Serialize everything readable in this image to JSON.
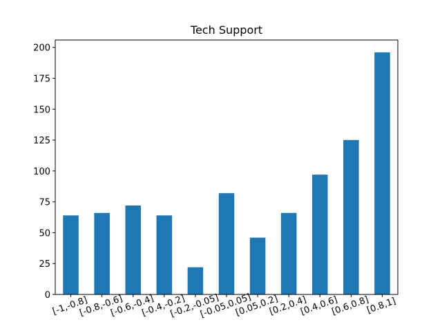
{
  "chart_data": {
    "type": "bar",
    "title": "Tech Support",
    "xlabel": "",
    "ylabel": "",
    "categories": [
      "[-1,-0.8]",
      "[-0.8,-0.6]",
      "[-0.6,-0.4]",
      "[-0.4,-0.2]",
      "[-0.2,-0.05]",
      "[-0.05,0.05]",
      "[0.05,0.2]",
      "[0.2,0.4]",
      "[0.4,0.6]",
      "[0.6,0.8]",
      "[0.8,1]"
    ],
    "values": [
      64,
      66,
      72,
      64,
      22,
      82,
      46,
      66,
      97,
      125,
      196
    ],
    "ylim": [
      0,
      206
    ],
    "yticks": [
      0,
      25,
      50,
      75,
      100,
      125,
      150,
      175,
      200
    ],
    "x_tick_rotation_deg": 20,
    "grid": false,
    "legend": "none",
    "colors": {
      "bar": "#1f77b4",
      "axis": "#000000",
      "background": "#ffffff"
    }
  }
}
